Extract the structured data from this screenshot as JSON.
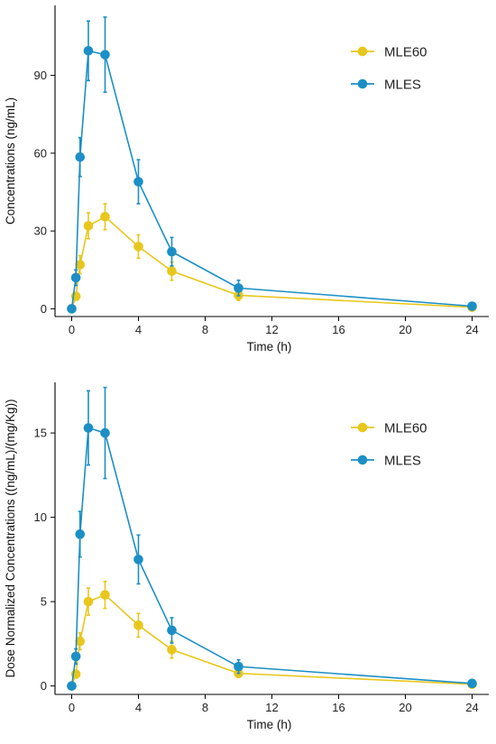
{
  "colors": {
    "MLE60": "#e8c71c",
    "MLES": "#1b8fc6"
  },
  "chart_data": [
    {
      "type": "line",
      "xlabel": "Time (h)",
      "ylabel": "Concentrations (ng/mL)",
      "xlim": [
        -1,
        25
      ],
      "ylim": [
        -3,
        117
      ],
      "xticks": [
        0,
        4,
        8,
        12,
        16,
        20,
        24
      ],
      "yticks": [
        0,
        30,
        60,
        90
      ],
      "legend_position": "top-right",
      "series": [
        {
          "name": "MLE60",
          "color": "#e8c71c",
          "x": [
            0,
            0.25,
            0.5,
            1,
            2,
            4,
            6,
            10,
            24
          ],
          "y": [
            0,
            4.8,
            17,
            32,
            35.5,
            24,
            14.5,
            5.2,
            0.6
          ],
          "err": [
            0,
            1.5,
            3.5,
            5,
            5,
            4.5,
            3.5,
            2,
            0.5
          ]
        },
        {
          "name": "MLES",
          "color": "#1b8fc6",
          "x": [
            0,
            0.25,
            0.5,
            1,
            2,
            4,
            6,
            10,
            24
          ],
          "y": [
            0,
            12,
            58.5,
            99.5,
            98,
            49,
            22,
            8,
            1
          ],
          "err": [
            0,
            3,
            7.5,
            11.5,
            14.5,
            8.5,
            5.5,
            3,
            0.5
          ]
        }
      ]
    },
    {
      "type": "line",
      "xlabel": "Time (h)",
      "ylabel": "Dose Normalized Concentrations ((ng/mL)/(mg/Kg))",
      "xlim": [
        -1,
        25
      ],
      "ylim": [
        -0.5,
        18
      ],
      "xticks": [
        0,
        4,
        8,
        12,
        16,
        20,
        24
      ],
      "yticks": [
        0,
        5,
        10,
        15
      ],
      "legend_position": "top-right",
      "series": [
        {
          "name": "MLE60",
          "color": "#e8c71c",
          "x": [
            0,
            0.25,
            0.5,
            1,
            2,
            4,
            6,
            10,
            24
          ],
          "y": [
            0,
            0.7,
            2.65,
            5,
            5.4,
            3.6,
            2.15,
            0.75,
            0.1
          ],
          "err": [
            0,
            0.2,
            0.5,
            0.8,
            0.8,
            0.7,
            0.5,
            0.25,
            0.05
          ]
        },
        {
          "name": "MLES",
          "color": "#1b8fc6",
          "x": [
            0,
            0.25,
            0.5,
            1,
            2,
            4,
            6,
            10,
            24
          ],
          "y": [
            0,
            1.75,
            9,
            15.3,
            15,
            7.5,
            3.3,
            1.15,
            0.15
          ],
          "err": [
            0,
            0.45,
            1.35,
            2.2,
            2.7,
            1.45,
            0.75,
            0.4,
            0.08
          ]
        }
      ]
    }
  ]
}
